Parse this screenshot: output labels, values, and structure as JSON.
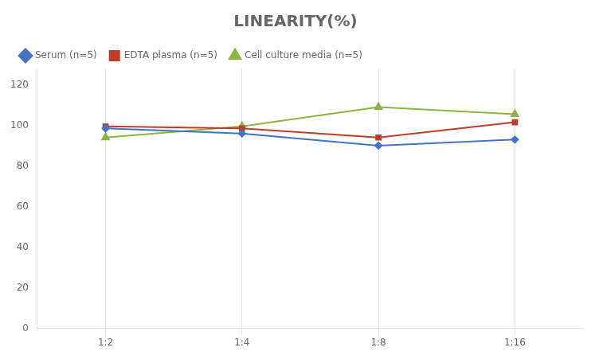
{
  "chart_data": {
    "type": "line",
    "title": "LINEARITY(%)",
    "categories": [
      "1:2",
      "1:4",
      "1:8",
      "1:16"
    ],
    "series": [
      {
        "name": "Serum (n=5)",
        "color": "#4472C4",
        "marker": "diamond",
        "values": [
          98.5,
          96.0,
          90.0,
          93.0
        ]
      },
      {
        "name": "EDTA plasma (n=5)",
        "color": "#BE3C28",
        "marker": "square",
        "values": [
          99.5,
          98.5,
          94.0,
          101.5
        ]
      },
      {
        "name": "Cell culture media (n=5)",
        "color": "#8BB540",
        "marker": "triangle",
        "values": [
          94.0,
          99.5,
          109.0,
          105.5
        ]
      }
    ],
    "ylim": [
      0,
      128
    ],
    "yticks": [
      0,
      20,
      40,
      60,
      80,
      100,
      120
    ],
    "grid": "x",
    "legend": "top"
  }
}
